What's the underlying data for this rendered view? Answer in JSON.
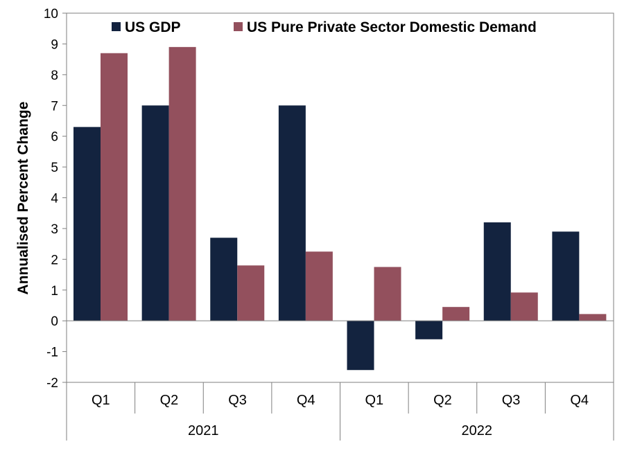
{
  "chart_data": {
    "type": "bar",
    "title": "",
    "xlabel": "",
    "ylabel": "Annualised Percent Change",
    "ylim": [
      -2,
      10
    ],
    "yticks": [
      -2,
      -1,
      0,
      1,
      2,
      3,
      4,
      5,
      6,
      7,
      8,
      9,
      10
    ],
    "categories": [
      "Q1",
      "Q2",
      "Q3",
      "Q4",
      "Q1",
      "Q2",
      "Q3",
      "Q4"
    ],
    "groups": [
      {
        "label": "2021",
        "count": 4
      },
      {
        "label": "2022",
        "count": 4
      }
    ],
    "series": [
      {
        "name": "US GDP",
        "color": "#13233f",
        "values": [
          6.3,
          7.0,
          2.7,
          7.0,
          -1.6,
          -0.6,
          3.2,
          2.9
        ]
      },
      {
        "name": "US Pure Private Sector Domestic Demand",
        "color": "#93505d",
        "values": [
          8.7,
          8.9,
          1.8,
          2.25,
          1.75,
          0.45,
          0.92,
          0.22
        ]
      }
    ],
    "legend_position": "top",
    "grid": false
  }
}
